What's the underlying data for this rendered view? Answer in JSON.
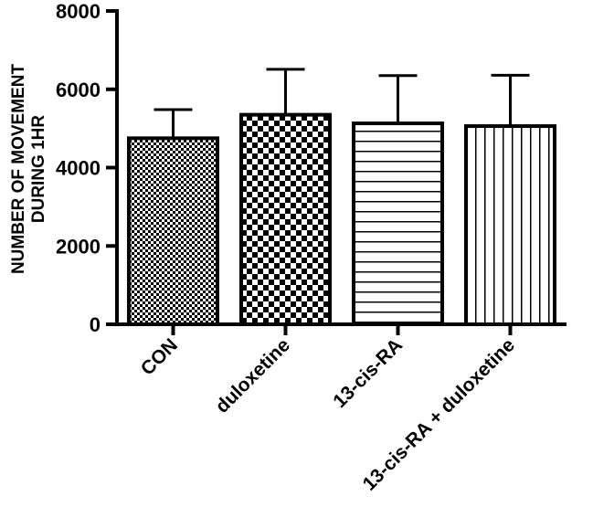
{
  "chart_data": {
    "type": "bar",
    "categories": [
      "CON",
      "duloxetine",
      "13-cis-RA",
      "13-cis-RA + duloxetine"
    ],
    "values": [
      4750,
      5350,
      5130,
      5060
    ],
    "errors": [
      730,
      1160,
      1220,
      1300
    ],
    "bar_patterns": [
      "fine-checker",
      "coarse-checker",
      "horizontal-lines",
      "vertical-lines"
    ],
    "ylabel_lines": [
      "NUMBER OF MOVEMENT",
      "DURING 1HR"
    ],
    "xlabel": "",
    "ylim": [
      0,
      8000
    ],
    "yticks": [
      "0",
      "2000",
      "4000",
      "6000",
      "8000"
    ],
    "grid": false,
    "error_bars": "upper"
  }
}
